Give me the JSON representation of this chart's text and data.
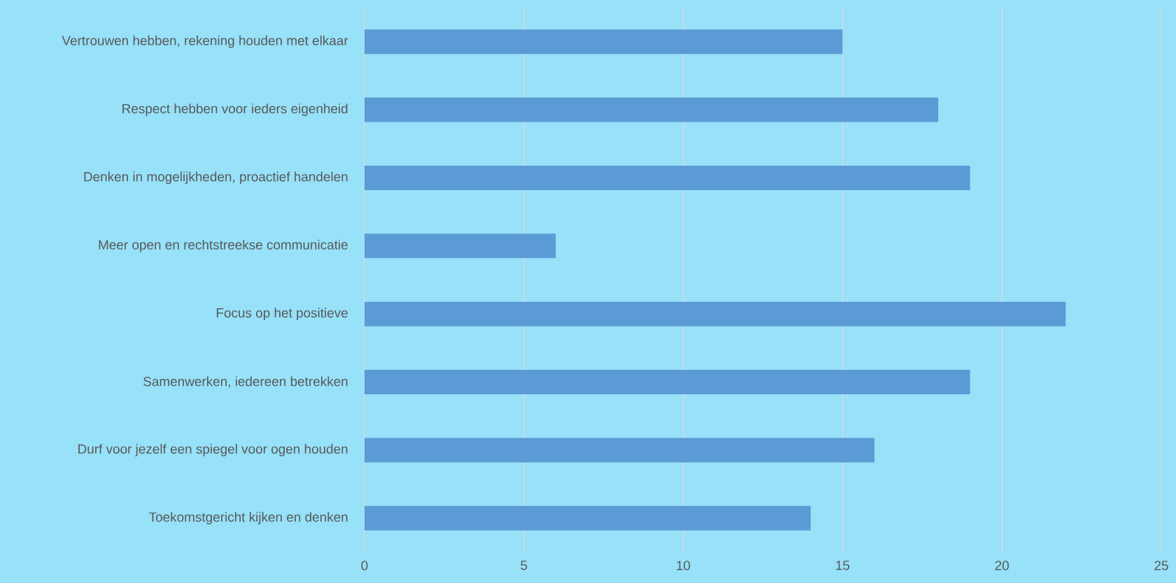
{
  "chart_data": {
    "type": "bar",
    "orientation": "horizontal",
    "categories": [
      "Vertrouwen hebben, rekening houden met elkaar",
      "Respect hebben voor ieders eigenheid",
      "Denken in mogelijkheden, proactief handelen",
      "Meer open en rechtstreekse communicatie",
      "Focus op het positieve",
      "Samenwerken, iedereen betrekken",
      "Durf voor jezelf een spiegel voor ogen houden",
      "Toekomstgericht kijken en denken"
    ],
    "values": [
      15,
      18,
      19,
      6,
      22,
      19,
      16,
      14
    ],
    "color": "#5b9bd5",
    "xlim": [
      0,
      25
    ],
    "xticks": [
      0,
      5,
      10,
      15,
      20,
      25
    ],
    "grid": "x"
  }
}
